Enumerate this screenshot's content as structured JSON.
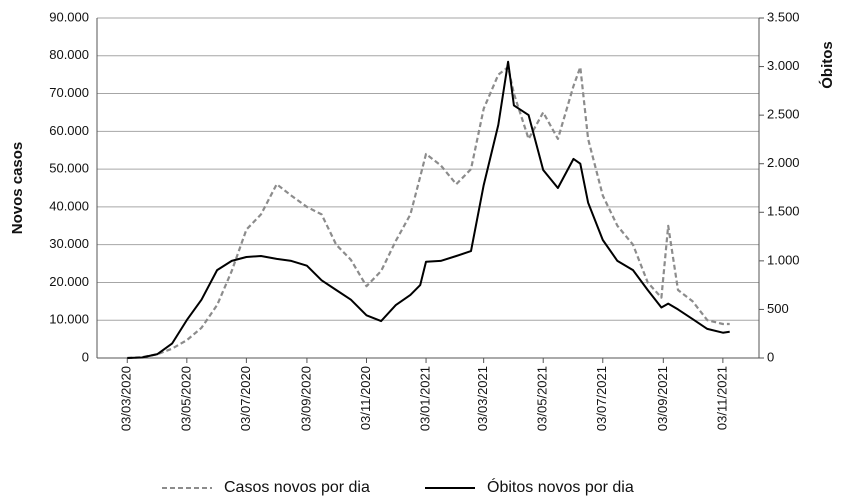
{
  "chart_data": {
    "type": "line",
    "y_label": "Novos casos",
    "y2_label": "Óbitos",
    "x": [
      "2020-03-03",
      "2020-03-18",
      "2020-04-03",
      "2020-04-18",
      "2020-05-03",
      "2020-05-18",
      "2020-06-03",
      "2020-06-18",
      "2020-07-03",
      "2020-07-18",
      "2020-08-03",
      "2020-08-18",
      "2020-09-03",
      "2020-09-18",
      "2020-10-03",
      "2020-10-18",
      "2020-11-03",
      "2020-11-18",
      "2020-12-03",
      "2020-12-18",
      "2020-12-28",
      "2021-01-03",
      "2021-01-18",
      "2021-02-03",
      "2021-02-18",
      "2021-03-03",
      "2021-03-18",
      "2021-03-28",
      "2021-04-03",
      "2021-04-18",
      "2021-05-03",
      "2021-05-18",
      "2021-06-03",
      "2021-06-10",
      "2021-06-18",
      "2021-07-03",
      "2021-07-18",
      "2021-08-03",
      "2021-08-18",
      "2021-09-01",
      "2021-09-08",
      "2021-09-18",
      "2021-10-03",
      "2021-10-18",
      "2021-11-03",
      "2021-11-10"
    ],
    "series": [
      {
        "name": "Casos novos por dia",
        "color": "#8c8c8c",
        "style": "dashed",
        "axis": "y",
        "values": [
          0,
          200,
          1000,
          2500,
          4700,
          8000,
          14000,
          23000,
          34000,
          38000,
          46000,
          43000,
          40000,
          38000,
          30000,
          26000,
          19000,
          23000,
          31000,
          38000,
          48000,
          54000,
          51000,
          46000,
          50000,
          66000,
          75000,
          77000,
          70000,
          58000,
          65000,
          58000,
          72000,
          77000,
          58000,
          43000,
          35000,
          30000,
          20000,
          16000,
          35000,
          18000,
          15000,
          10000,
          9000,
          9000
        ]
      },
      {
        "name": "Óbitos novos por dia",
        "color": "#000000",
        "style": "solid",
        "axis": "y2",
        "values": [
          0,
          5,
          40,
          150,
          390,
          600,
          905,
          1000,
          1040,
          1050,
          1020,
          1000,
          950,
          800,
          700,
          600,
          440,
          380,
          545,
          650,
          750,
          990,
          1000,
          1050,
          1100,
          1780,
          2400,
          3050,
          2600,
          2500,
          1935,
          1750,
          2050,
          2000,
          1600,
          1215,
          1000,
          905,
          700,
          520,
          560,
          500,
          400,
          300,
          260,
          270
        ]
      }
    ],
    "xlim": [
      "2020-02-01",
      "2021-12-10"
    ],
    "xticks": [
      {
        "value": "2020-03-03",
        "label": "03/03/2020"
      },
      {
        "value": "2020-05-03",
        "label": "03/05/2020"
      },
      {
        "value": "2020-07-03",
        "label": "03/07/2020"
      },
      {
        "value": "2020-09-03",
        "label": "03/09/2020"
      },
      {
        "value": "2020-11-03",
        "label": "03/11/2020"
      },
      {
        "value": "2021-01-03",
        "label": "03/01/2021"
      },
      {
        "value": "2021-03-03",
        "label": "03/03/2021"
      },
      {
        "value": "2021-05-03",
        "label": "03/05/2021"
      },
      {
        "value": "2021-07-03",
        "label": "03/07/2021"
      },
      {
        "value": "2021-09-03",
        "label": "03/09/2021"
      },
      {
        "value": "2021-11-03",
        "label": "03/11/2021"
      }
    ],
    "ylim": [
      0,
      90000
    ],
    "yticks": [
      0,
      {
        "value": 10000,
        "label": "10.000"
      },
      {
        "value": 20000,
        "label": "20.000"
      },
      {
        "value": 30000,
        "label": "30.000"
      },
      {
        "value": 40000,
        "label": "40.000"
      },
      {
        "value": 50000,
        "label": "50.000"
      },
      {
        "value": 60000,
        "label": "60.000"
      },
      {
        "value": 70000,
        "label": "70.000"
      },
      {
        "value": 80000,
        "label": "80.000"
      },
      {
        "value": 90000,
        "label": "90.000"
      }
    ],
    "y2lim": [
      0,
      3500
    ],
    "y2ticks": [
      0,
      500,
      {
        "value": 1000,
        "label": "1.000"
      },
      {
        "value": 1500,
        "label": "1.500"
      },
      {
        "value": 2000,
        "label": "2.000"
      },
      {
        "value": 2500,
        "label": "2.500"
      },
      {
        "value": 3000,
        "label": "3.000"
      },
      {
        "value": 3500,
        "label": "3.500"
      }
    ],
    "grid": true,
    "legend": "bottom"
  }
}
